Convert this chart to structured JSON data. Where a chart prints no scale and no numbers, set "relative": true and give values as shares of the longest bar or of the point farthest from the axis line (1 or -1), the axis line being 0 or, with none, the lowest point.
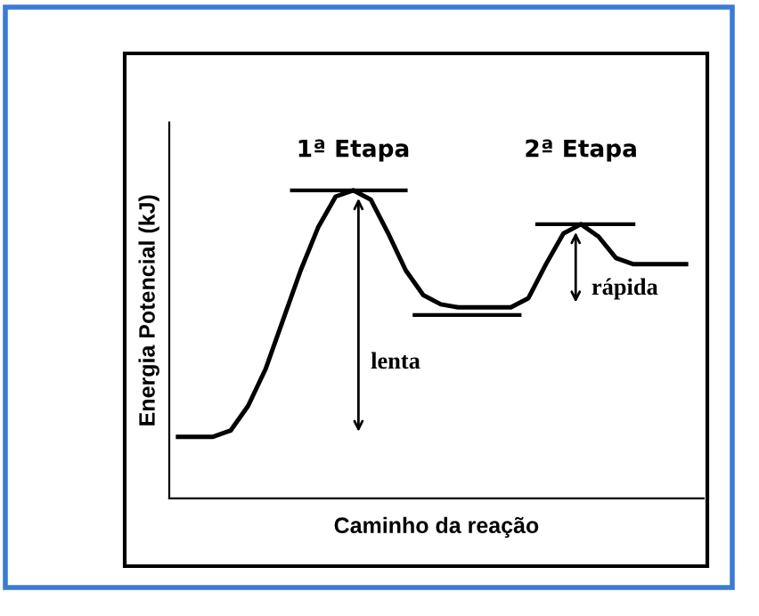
{
  "chart_data": {
    "type": "line",
    "relative": true,
    "xlabel": "Caminho da reação",
    "ylabel": "Energia Potencial (kJ)",
    "color": "#000000",
    "categories": [
      null,
      null,
      null,
      null,
      null,
      null,
      null,
      null,
      null,
      null,
      null,
      null,
      null,
      null,
      null,
      null,
      null,
      null,
      null,
      null,
      null,
      null,
      null,
      null,
      null,
      null,
      null,
      null,
      null,
      null
    ],
    "values": [
      0.2,
      0.2,
      0.2,
      0.22,
      0.3,
      0.42,
      0.58,
      0.74,
      0.88,
      0.98,
      1.0,
      0.97,
      0.86,
      0.74,
      0.66,
      0.63,
      0.62,
      0.62,
      0.62,
      0.62,
      0.65,
      0.76,
      0.86,
      0.89,
      0.85,
      0.78,
      0.76,
      0.76,
      0.76,
      0.76
    ],
    "annotations": [
      "1ª Etapa",
      "2ª Etapa",
      "lenta",
      "rápida"
    ]
  }
}
